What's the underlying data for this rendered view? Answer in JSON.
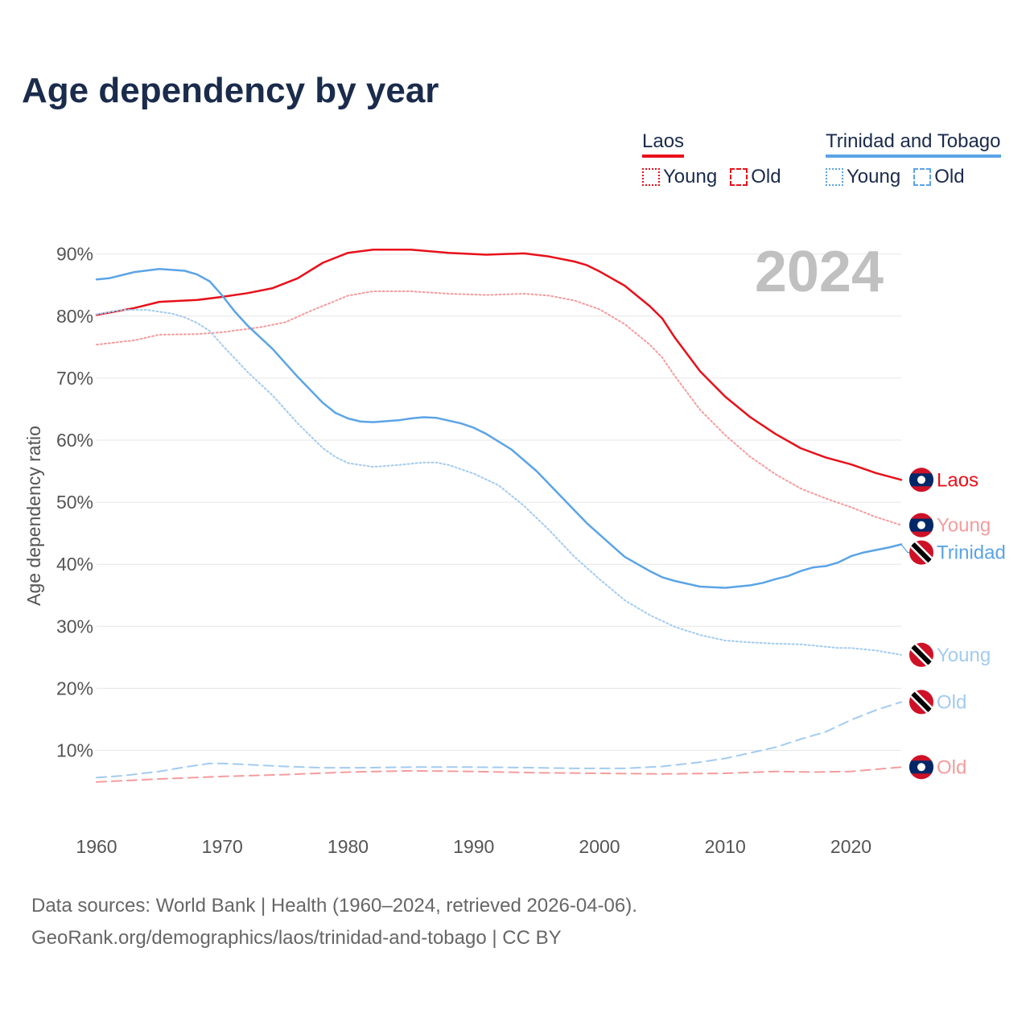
{
  "title": "Age dependency by year",
  "colors": {
    "laos": "#e8101a",
    "laos_light": "#f49c9e",
    "tt": "#5ba4e6",
    "tt_light": "#a3cbf0",
    "grid": "#e6e6e6",
    "axis_text": "#555555",
    "year_watermark": "#c0c0c0"
  },
  "legend": {
    "laos": {
      "country": "Laos",
      "young": "Young",
      "old": "Old"
    },
    "tt": {
      "country": "Trinidad and Tobago",
      "young": "Young",
      "old": "Old"
    }
  },
  "footer": {
    "line1": "Data sources: World Bank | Health (1960–2024, retrieved 2026-04-06).",
    "line2": "GeoRank.org/demographics/laos/trinidad-and-tobago | CC BY"
  },
  "chart_data": {
    "type": "line",
    "title": "Age dependency by year",
    "ylabel": "Age dependency ratio",
    "xlabel": "",
    "year_label": "2024",
    "xlim": [
      1960,
      2024
    ],
    "ylim": [
      0,
      95
    ],
    "y_ticks": [
      10,
      20,
      30,
      40,
      50,
      60,
      70,
      80,
      90
    ],
    "y_tick_labels": [
      "10%",
      "20%",
      "30%",
      "40%",
      "50%",
      "60%",
      "70%",
      "80%",
      "90%"
    ],
    "x_ticks": [
      1960,
      1970,
      1980,
      1990,
      2000,
      2010,
      2020
    ],
    "x_tick_labels": [
      "1960",
      "1970",
      "1980",
      "1990",
      "2000",
      "2010",
      "2020"
    ],
    "series": [
      {
        "name": "Laos",
        "country": "Laos",
        "kind": "total",
        "style": "solid",
        "end_label": "Laos",
        "flag": "laos",
        "points": [
          [
            1960,
            80.2
          ],
          [
            1963,
            81.3
          ],
          [
            1965,
            82.3
          ],
          [
            1968,
            82.6
          ],
          [
            1970,
            83.1
          ],
          [
            1972,
            83.7
          ],
          [
            1974,
            84.5
          ],
          [
            1976,
            86.1
          ],
          [
            1978,
            88.6
          ],
          [
            1980,
            90.2
          ],
          [
            1982,
            90.7
          ],
          [
            1985,
            90.7
          ],
          [
            1988,
            90.2
          ],
          [
            1991,
            89.9
          ],
          [
            1994,
            90.1
          ],
          [
            1996,
            89.6
          ],
          [
            1998,
            88.8
          ],
          [
            1999,
            88.2
          ],
          [
            2000,
            87.2
          ],
          [
            2002,
            84.9
          ],
          [
            2004,
            81.6
          ],
          [
            2005,
            79.6
          ],
          [
            2006,
            76.5
          ],
          [
            2008,
            71.1
          ],
          [
            2010,
            67.0
          ],
          [
            2012,
            63.7
          ],
          [
            2014,
            61.0
          ],
          [
            2016,
            58.7
          ],
          [
            2018,
            57.2
          ],
          [
            2020,
            56.1
          ],
          [
            2022,
            54.7
          ],
          [
            2024,
            53.6
          ]
        ]
      },
      {
        "name": "Laos Young",
        "country": "Laos",
        "kind": "young",
        "style": "dotted",
        "end_label": "Young",
        "flag": "laos",
        "points": [
          [
            1960,
            75.4
          ],
          [
            1963,
            76.1
          ],
          [
            1965,
            77.0
          ],
          [
            1968,
            77.1
          ],
          [
            1970,
            77.4
          ],
          [
            1973,
            78.2
          ],
          [
            1975,
            79.0
          ],
          [
            1977,
            80.8
          ],
          [
            1980,
            83.3
          ],
          [
            1982,
            84.0
          ],
          [
            1985,
            84.0
          ],
          [
            1988,
            83.6
          ],
          [
            1991,
            83.4
          ],
          [
            1994,
            83.6
          ],
          [
            1996,
            83.3
          ],
          [
            1998,
            82.5
          ],
          [
            2000,
            81.1
          ],
          [
            2002,
            78.7
          ],
          [
            2004,
            75.4
          ],
          [
            2005,
            73.3
          ],
          [
            2006,
            70.3
          ],
          [
            2008,
            64.9
          ],
          [
            2010,
            60.8
          ],
          [
            2012,
            57.3
          ],
          [
            2014,
            54.5
          ],
          [
            2016,
            52.2
          ],
          [
            2018,
            50.6
          ],
          [
            2020,
            49.2
          ],
          [
            2022,
            47.6
          ],
          [
            2024,
            46.3
          ]
        ]
      },
      {
        "name": "Laos Old",
        "country": "Laos",
        "kind": "old",
        "style": "dashed",
        "end_label": "Old",
        "flag": "laos",
        "points": [
          [
            1960,
            4.9
          ],
          [
            1965,
            5.4
          ],
          [
            1970,
            5.8
          ],
          [
            1975,
            6.1
          ],
          [
            1980,
            6.5
          ],
          [
            1985,
            6.7
          ],
          [
            1990,
            6.6
          ],
          [
            1995,
            6.4
          ],
          [
            2000,
            6.3
          ],
          [
            2005,
            6.2
          ],
          [
            2010,
            6.3
          ],
          [
            2014,
            6.6
          ],
          [
            2017,
            6.5
          ],
          [
            2020,
            6.6
          ],
          [
            2024,
            7.3
          ]
        ]
      },
      {
        "name": "Trinidad and Tobago",
        "country": "Trinidad and Tobago",
        "kind": "total",
        "style": "solid",
        "end_label": "Trinidad",
        "flag": "tt",
        "points": [
          [
            1960,
            85.9
          ],
          [
            1961,
            86.1
          ],
          [
            1963,
            87.1
          ],
          [
            1965,
            87.6
          ],
          [
            1967,
            87.3
          ],
          [
            1968,
            86.7
          ],
          [
            1969,
            85.6
          ],
          [
            1970,
            83.3
          ],
          [
            1971,
            80.7
          ],
          [
            1972,
            78.5
          ],
          [
            1974,
            74.7
          ],
          [
            1976,
            70.2
          ],
          [
            1978,
            66.0
          ],
          [
            1979,
            64.4
          ],
          [
            1980,
            63.5
          ],
          [
            1981,
            63.0
          ],
          [
            1982,
            62.9
          ],
          [
            1984,
            63.2
          ],
          [
            1985,
            63.5
          ],
          [
            1986,
            63.7
          ],
          [
            1987,
            63.6
          ],
          [
            1989,
            62.7
          ],
          [
            1990,
            62.0
          ],
          [
            1991,
            61.0
          ],
          [
            1993,
            58.5
          ],
          [
            1995,
            55.0
          ],
          [
            1997,
            50.8
          ],
          [
            1999,
            46.6
          ],
          [
            2001,
            43.0
          ],
          [
            2002,
            41.2
          ],
          [
            2004,
            38.9
          ],
          [
            2005,
            37.9
          ],
          [
            2006,
            37.3
          ],
          [
            2008,
            36.4
          ],
          [
            2010,
            36.2
          ],
          [
            2012,
            36.6
          ],
          [
            2013,
            37.0
          ],
          [
            2014,
            37.6
          ],
          [
            2015,
            38.1
          ],
          [
            2016,
            38.9
          ],
          [
            2017,
            39.5
          ],
          [
            2018,
            39.7
          ],
          [
            2019,
            40.3
          ],
          [
            2020,
            41.3
          ],
          [
            2021,
            41.9
          ],
          [
            2023,
            42.7
          ],
          [
            2024,
            43.2
          ]
        ]
      },
      {
        "name": "Trinidad and Tobago Young",
        "country": "Trinidad and Tobago",
        "kind": "young",
        "style": "dotted",
        "end_label": "Young",
        "flag": "tt",
        "points": [
          [
            1960,
            80.3
          ],
          [
            1962,
            81.0
          ],
          [
            1964,
            81.0
          ],
          [
            1966,
            80.4
          ],
          [
            1967,
            79.8
          ],
          [
            1968,
            78.9
          ],
          [
            1969,
            77.6
          ],
          [
            1970,
            75.3
          ],
          [
            1972,
            71.0
          ],
          [
            1974,
            67.2
          ],
          [
            1976,
            62.7
          ],
          [
            1978,
            58.7
          ],
          [
            1979,
            57.3
          ],
          [
            1980,
            56.3
          ],
          [
            1982,
            55.7
          ],
          [
            1984,
            56.0
          ],
          [
            1986,
            56.4
          ],
          [
            1987,
            56.4
          ],
          [
            1988,
            56.0
          ],
          [
            1990,
            54.6
          ],
          [
            1992,
            52.7
          ],
          [
            1994,
            49.4
          ],
          [
            1996,
            45.5
          ],
          [
            1998,
            41.2
          ],
          [
            2000,
            37.6
          ],
          [
            2002,
            34.2
          ],
          [
            2004,
            31.8
          ],
          [
            2006,
            29.9
          ],
          [
            2008,
            28.6
          ],
          [
            2010,
            27.7
          ],
          [
            2012,
            27.4
          ],
          [
            2014,
            27.2
          ],
          [
            2016,
            27.1
          ],
          [
            2018,
            26.7
          ],
          [
            2019,
            26.5
          ],
          [
            2020,
            26.5
          ],
          [
            2022,
            26.1
          ],
          [
            2024,
            25.4
          ]
        ]
      },
      {
        "name": "Trinidad and Tobago Old",
        "country": "Trinidad and Tobago",
        "kind": "old",
        "style": "dashed",
        "end_label": "Old",
        "flag": "tt",
        "points": [
          [
            1960,
            5.6
          ],
          [
            1962,
            5.9
          ],
          [
            1965,
            6.6
          ],
          [
            1967,
            7.3
          ],
          [
            1969,
            7.9
          ],
          [
            1970,
            7.9
          ],
          [
            1972,
            7.7
          ],
          [
            1975,
            7.4
          ],
          [
            1978,
            7.2
          ],
          [
            1981,
            7.2
          ],
          [
            1985,
            7.3
          ],
          [
            1990,
            7.3
          ],
          [
            1995,
            7.2
          ],
          [
            1998,
            7.1
          ],
          [
            2000,
            7.1
          ],
          [
            2002,
            7.1
          ],
          [
            2005,
            7.4
          ],
          [
            2008,
            8.1
          ],
          [
            2010,
            8.7
          ],
          [
            2012,
            9.6
          ],
          [
            2014,
            10.5
          ],
          [
            2016,
            11.8
          ],
          [
            2018,
            13.0
          ],
          [
            2020,
            14.9
          ],
          [
            2022,
            16.5
          ],
          [
            2024,
            17.8
          ]
        ]
      }
    ]
  }
}
